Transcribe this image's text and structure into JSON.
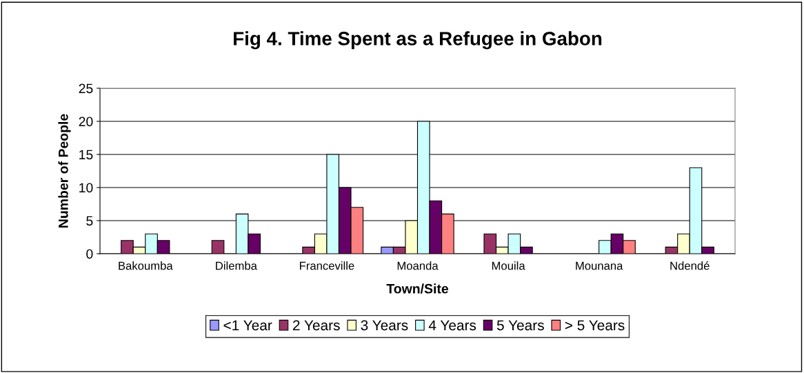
{
  "chart_data": {
    "type": "bar",
    "title": "Fig 4. Time Spent as a Refugee in Gabon",
    "xlabel": "Town/Site",
    "ylabel": "Number of People",
    "categories": [
      "Bakoumba",
      "Dilemba",
      "Franceville",
      "Moanda",
      "Mouila",
      "Mounana",
      "Ndendé"
    ],
    "series": [
      {
        "name": "<1 Year",
        "color": "#9999ff",
        "values": [
          0,
          0,
          0,
          1,
          0,
          0,
          0
        ]
      },
      {
        "name": "2 Years",
        "color": "#993366",
        "values": [
          2,
          2,
          1,
          1,
          3,
          0,
          1
        ]
      },
      {
        "name": "3 Years",
        "color": "#ffffcc",
        "values": [
          1,
          0,
          3,
          5,
          1,
          0,
          3
        ]
      },
      {
        "name": "4 Years",
        "color": "#ccffff",
        "values": [
          3,
          6,
          15,
          20,
          3,
          2,
          13
        ]
      },
      {
        "name": "5 Years",
        "color": "#660066",
        "values": [
          2,
          3,
          10,
          8,
          1,
          3,
          1
        ]
      },
      {
        "name": "> 5 Years",
        "color": "#ff8080",
        "values": [
          0,
          0,
          7,
          6,
          0,
          2,
          0
        ]
      }
    ],
    "ylim": [
      0,
      25
    ],
    "yticks": [
      0,
      5,
      10,
      15,
      20,
      25
    ],
    "grid": "y",
    "legend": "bottom"
  }
}
